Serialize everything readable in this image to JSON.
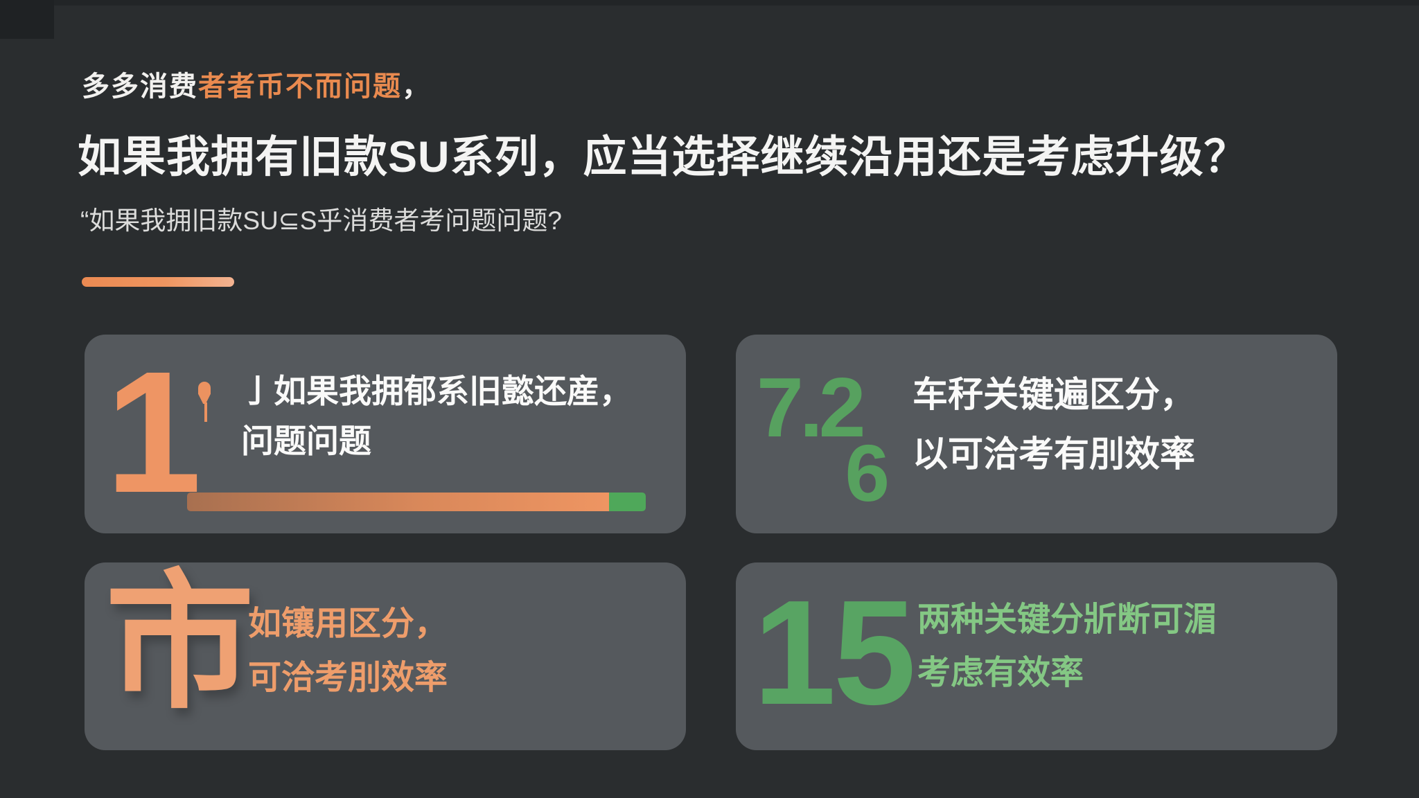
{
  "page": {
    "background": "#2A2D2F",
    "card_background": "#55595D",
    "accent_orange": "#EC9260",
    "accent_green": "#58A463"
  },
  "header": {
    "eyebrow": {
      "white_part": "多多消费",
      "orange_part": "者者币不而问题",
      "comma": "，"
    },
    "title": "如果我拥有旧款SU系列，应当选择继续沿用还是考虑升级？",
    "subtitle": "“如果我拥旧款SU⊆S乎消费者考问题问题?"
  },
  "cards": [
    {
      "number": "1",
      "icon": "wine-glass",
      "line1": "亅如果我拥郁系旧懿还産，",
      "line2": "问题问题",
      "progress": {
        "orange_fraction": "92%",
        "green_fraction": "8%",
        "orange_style": "width:92%"
      }
    },
    {
      "number_top": "7.2",
      "number_bottom": "6",
      "line1": "车秄关键遍区分，",
      "line2": "以可洽考有刖效率"
    },
    {
      "glyph": "市",
      "line1": "如镶用区分，",
      "line2": "可洽考刖效率"
    },
    {
      "number": "15",
      "line1": "两种关键分斨断可湄",
      "line2": "考虑有效率"
    }
  ]
}
